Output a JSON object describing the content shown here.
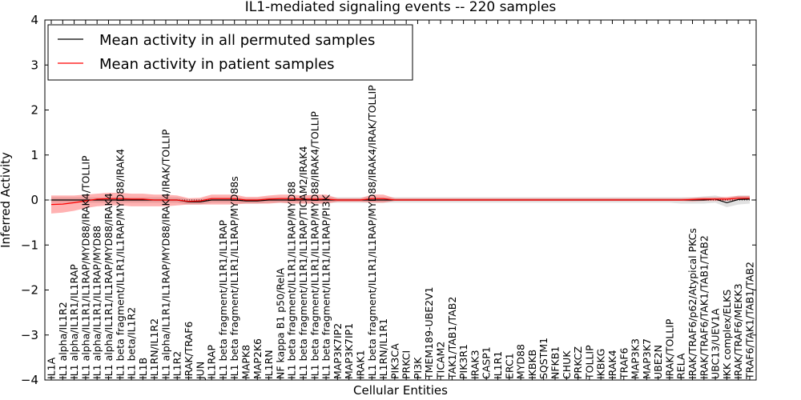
{
  "chart_data": {
    "type": "line",
    "title": "IL1-mediated signaling events -- 220 samples",
    "xlabel": "Cellular Entities",
    "ylabel": "Inferred Activity",
    "ylim": [
      -4,
      4
    ],
    "yticks": [
      "4",
      "3",
      "2",
      "1",
      "0",
      "−1",
      "−2",
      "−3",
      "−4"
    ],
    "legend_position": "top-left",
    "categories": [
      "IL1A",
      "IL1 alpha/IL1R2",
      "IL1 alpha/IL1R1/IL1RAP",
      "IL1 alpha/IL1R1/IL1RAP/MYD88/IRAK4/TOLLIP",
      "IL1 alpha/IL1R1/IL1RAP/MYD88",
      "IL1 alpha/IL1R1/IL1RAP/MYD88/IRAK4",
      "IL1 beta fragment/IL1R1/IL1RAP/MYD88/IRAK4",
      "IL1 beta/IL1R2",
      "IL1B",
      "IL1RN/IL1R2",
      "IL1 alpha/IL1R1/IL1RAP/MYD88/IRAK4/IRAK/TOLLIP",
      "IL1R2",
      "IRAK/TRAF6",
      "JUN",
      "IL1RAP",
      "IL1 beta fragment/IL1R1/IL1RAP",
      "IL1 beta fragment/IL1R1/IL1RAP/MYD88s",
      "MAPK8",
      "MAP2K6",
      "IL1RN",
      "NF kappa B1 p50/RelA",
      "IL1 beta fragment/IL1R1/IL1RAP/MYD88",
      "IL1 beta fragment/IL1R1/IL1RAP/TICAM2/IRAK4",
      "IL1 beta fragment/IL1R1/IL1RAP/MYD88/IRAK4/TOLLIP",
      "IL1 beta fragment/IL1R1/IL1RAP/PI3K",
      "MAP3K7IP2",
      "MAP3K7IP1",
      "IRAK1",
      "IL1 beta fragment/IL1R1/IL1RAP/MYD88/IRAK4/IRAK/TOLLIP",
      "IL1RN/IL1R1",
      "PIK3CA",
      "PRKCI",
      "PI3K",
      "TMEM189-UBE2V1",
      "TICAM2",
      "TAK1/TAB1/TAB2",
      "PIK3R1",
      "IRAK3",
      "CASP1",
      "IL1R1",
      "ERC1",
      "MYD88",
      "IKBKB",
      "SQSTM1",
      "NFKB1",
      "CHUK",
      "PRKCZ",
      "TOLLIP",
      "IKBKG",
      "IRAK4",
      "TRAF6",
      "MAP3K3",
      "MAP3K7",
      "UBE2N",
      "IRAK/TOLLIP",
      "RELA",
      "IRAK/TRAF6/p62/Atypical PKCs",
      "IRAK/TRAF6/TAK1/TAB1/TAB2",
      "UBC13/UEV1A",
      "IKK complex/ELKS",
      "IRAK/TRAF6/MEKK3",
      "TRAF6/TAK1/TAB1/TAB2"
    ],
    "series": [
      {
        "name": "Mean activity in all permuted samples",
        "color": "#000000",
        "values": [
          0.0,
          0.0,
          0.0,
          0.0,
          0.0,
          0.0,
          0.0,
          0.0,
          0.0,
          0.0,
          0.0,
          0.0,
          -0.04,
          -0.04,
          0.0,
          0.0,
          0.0,
          -0.02,
          -0.02,
          0.0,
          0.0,
          0.0,
          0.0,
          0.0,
          0.0,
          0.0,
          0.0,
          0.0,
          0.0,
          0.0,
          0.0,
          0.0,
          0.0,
          0.0,
          0.0,
          0.0,
          0.0,
          0.0,
          0.0,
          0.0,
          0.0,
          0.0,
          0.0,
          0.0,
          0.0,
          0.0,
          0.0,
          0.0,
          0.0,
          0.0,
          0.0,
          0.0,
          0.0,
          0.0,
          0.0,
          0.0,
          0.0,
          0.0,
          0.02,
          -0.06,
          0.01,
          0.02
        ],
        "band_lower": [
          -0.06,
          -0.06,
          -0.06,
          -0.06,
          -0.06,
          -0.06,
          -0.06,
          -0.06,
          -0.06,
          -0.06,
          -0.06,
          -0.06,
          -0.1,
          -0.1,
          -0.06,
          -0.06,
          -0.06,
          -0.08,
          -0.08,
          -0.06,
          -0.06,
          -0.06,
          -0.06,
          -0.06,
          -0.06,
          -0.06,
          -0.06,
          -0.06,
          -0.06,
          -0.06,
          -0.06,
          -0.06,
          -0.06,
          -0.06,
          -0.06,
          -0.06,
          -0.06,
          -0.06,
          -0.06,
          -0.06,
          -0.06,
          -0.06,
          -0.06,
          -0.06,
          -0.06,
          -0.06,
          -0.06,
          -0.06,
          -0.06,
          -0.06,
          -0.06,
          -0.06,
          -0.06,
          -0.06,
          -0.06,
          -0.08,
          -0.08,
          -0.08,
          -0.06,
          -0.16,
          -0.1,
          -0.08
        ],
        "band_upper": [
          0.06,
          0.06,
          0.06,
          0.06,
          0.06,
          0.06,
          0.06,
          0.06,
          0.06,
          0.06,
          0.06,
          0.06,
          0.02,
          0.02,
          0.06,
          0.06,
          0.06,
          0.04,
          0.04,
          0.06,
          0.06,
          0.06,
          0.06,
          0.06,
          0.06,
          0.06,
          0.06,
          0.06,
          0.06,
          0.06,
          0.06,
          0.06,
          0.06,
          0.06,
          0.06,
          0.06,
          0.06,
          0.06,
          0.06,
          0.06,
          0.06,
          0.06,
          0.06,
          0.06,
          0.06,
          0.06,
          0.06,
          0.06,
          0.06,
          0.06,
          0.06,
          0.06,
          0.06,
          0.06,
          0.06,
          0.06,
          0.06,
          0.08,
          0.1,
          0.04,
          0.1,
          0.1
        ]
      },
      {
        "name": "Mean activity in patient samples",
        "color": "#ff0000",
        "values": [
          -0.1,
          -0.09,
          -0.06,
          -0.02,
          0.02,
          0.03,
          0.03,
          0.02,
          0.02,
          0.0,
          0.0,
          0.0,
          -0.03,
          -0.02,
          0.03,
          0.03,
          0.03,
          0.0,
          0.0,
          0.02,
          0.03,
          0.03,
          0.02,
          0.02,
          0.02,
          0.0,
          0.0,
          0.0,
          0.03,
          0.03,
          0.0,
          0.0,
          0.0,
          0.0,
          0.0,
          0.0,
          0.0,
          0.0,
          0.0,
          0.0,
          0.0,
          0.0,
          0.0,
          0.0,
          0.0,
          0.0,
          0.0,
          0.0,
          0.0,
          0.0,
          0.0,
          0.0,
          0.0,
          0.0,
          0.0,
          0.0,
          0.01,
          0.02,
          0.02,
          0.02,
          0.04,
          0.04
        ],
        "band_lower": [
          -0.3,
          -0.28,
          -0.24,
          -0.18,
          -0.14,
          -0.12,
          -0.12,
          -0.14,
          -0.14,
          -0.14,
          -0.14,
          -0.12,
          -0.1,
          -0.1,
          -0.1,
          -0.1,
          -0.1,
          -0.08,
          -0.08,
          -0.08,
          -0.06,
          -0.08,
          -0.08,
          -0.08,
          -0.08,
          -0.04,
          -0.04,
          -0.04,
          -0.06,
          -0.06,
          -0.02,
          -0.02,
          -0.02,
          -0.02,
          -0.02,
          -0.02,
          -0.02,
          -0.02,
          -0.02,
          -0.02,
          -0.02,
          -0.02,
          -0.02,
          -0.02,
          -0.02,
          -0.02,
          -0.02,
          -0.02,
          -0.02,
          -0.02,
          -0.02,
          -0.02,
          -0.02,
          -0.02,
          -0.02,
          -0.02,
          -0.03,
          -0.02,
          -0.02,
          -0.02,
          0.0,
          0.0
        ],
        "band_upper": [
          0.1,
          0.1,
          0.1,
          0.12,
          0.14,
          0.16,
          0.16,
          0.14,
          0.14,
          0.12,
          0.12,
          0.1,
          0.04,
          0.05,
          0.12,
          0.12,
          0.12,
          0.07,
          0.07,
          0.1,
          0.12,
          0.12,
          0.1,
          0.12,
          0.12,
          0.04,
          0.04,
          0.04,
          0.12,
          0.12,
          0.04,
          0.04,
          0.04,
          0.04,
          0.04,
          0.04,
          0.04,
          0.04,
          0.04,
          0.04,
          0.04,
          0.04,
          0.04,
          0.04,
          0.04,
          0.04,
          0.04,
          0.04,
          0.04,
          0.04,
          0.04,
          0.04,
          0.04,
          0.04,
          0.04,
          0.04,
          0.05,
          0.06,
          0.06,
          0.07,
          0.09,
          0.09
        ]
      }
    ]
  }
}
